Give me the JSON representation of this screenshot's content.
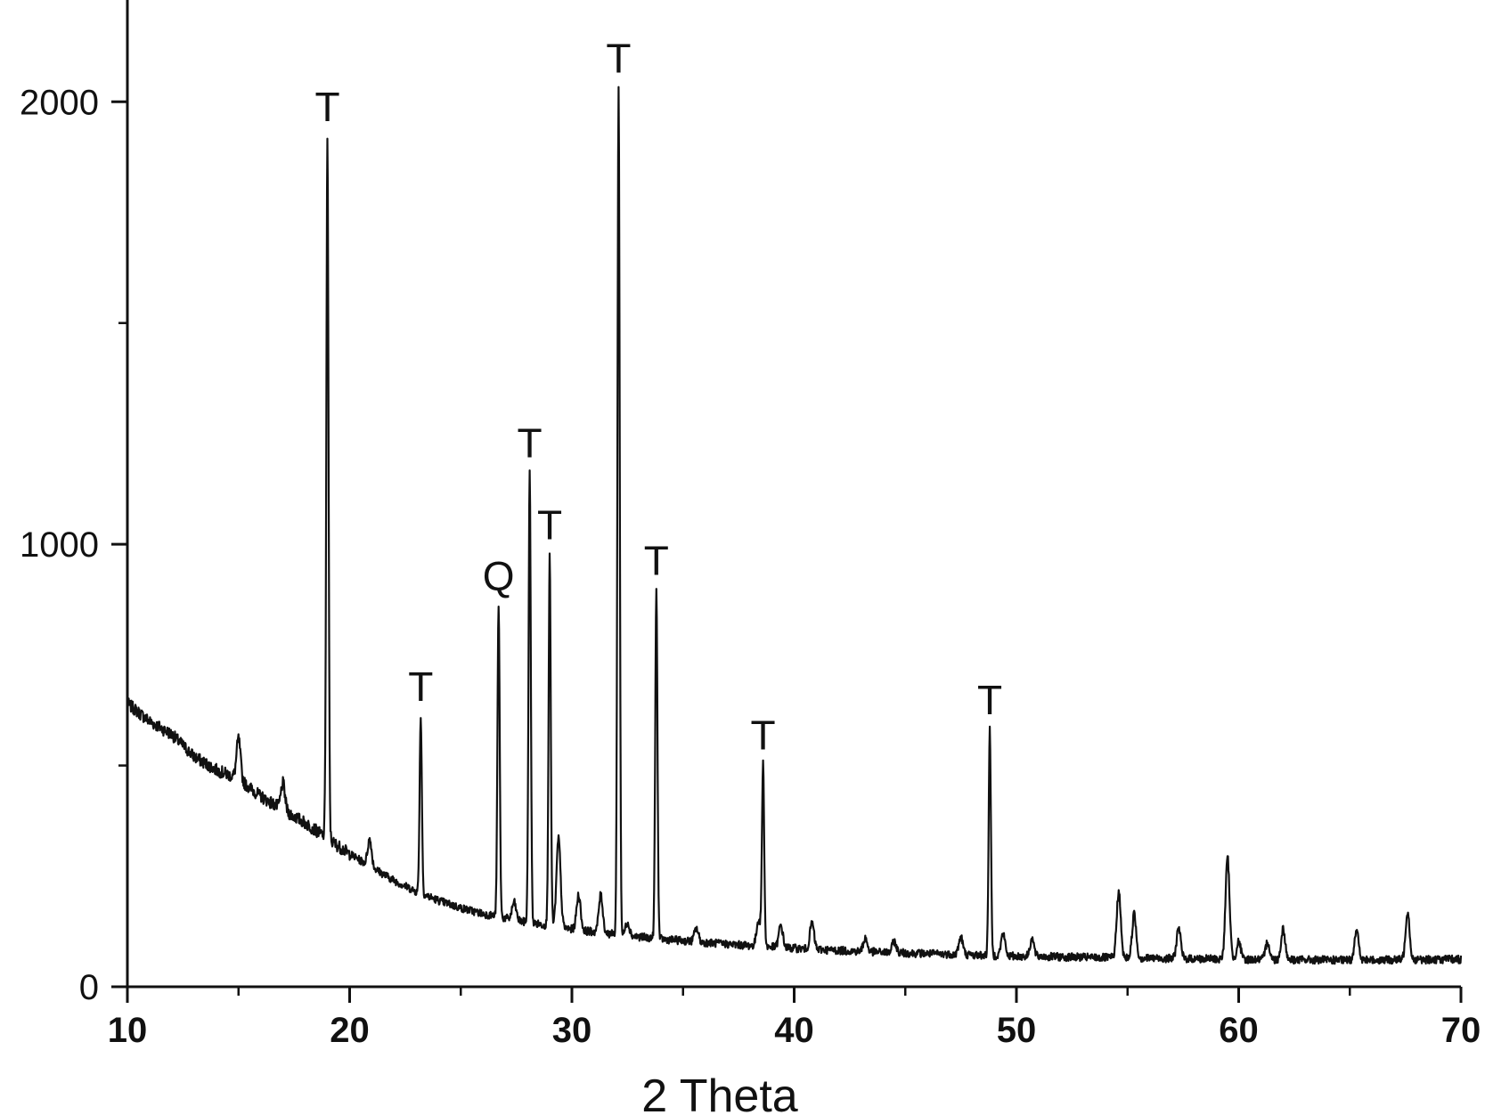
{
  "chart_data": {
    "type": "line",
    "title": "",
    "xlabel": "2 Theta",
    "ylabel": "",
    "xlim": [
      10,
      70
    ],
    "ylim": [
      0,
      2230
    ],
    "x_ticks": [
      10,
      20,
      30,
      40,
      50,
      60,
      70
    ],
    "y_ticks": [
      0,
      1000,
      2000
    ],
    "grid": false,
    "line_color": "#111111",
    "baseline": [
      [
        10,
        640
      ],
      [
        11,
        600
      ],
      [
        12,
        570
      ],
      [
        13,
        520
      ],
      [
        14,
        490
      ],
      [
        15,
        470
      ],
      [
        16,
        430
      ],
      [
        17,
        400
      ],
      [
        18,
        370
      ],
      [
        19,
        335
      ],
      [
        20,
        300
      ],
      [
        21,
        270
      ],
      [
        22,
        240
      ],
      [
        23,
        215
      ],
      [
        24,
        195
      ],
      [
        25,
        178
      ],
      [
        26,
        165
      ],
      [
        27,
        155
      ],
      [
        28,
        145
      ],
      [
        29,
        138
      ],
      [
        30,
        130
      ],
      [
        31,
        124
      ],
      [
        32,
        118
      ],
      [
        33,
        113
      ],
      [
        34,
        108
      ],
      [
        35,
        104
      ],
      [
        36,
        100
      ],
      [
        38,
        93
      ],
      [
        40,
        87
      ],
      [
        42,
        82
      ],
      [
        44,
        78
      ],
      [
        46,
        75
      ],
      [
        48,
        72
      ],
      [
        50,
        69
      ],
      [
        55,
        65
      ],
      [
        60,
        62
      ],
      [
        65,
        60
      ],
      [
        70,
        62
      ]
    ],
    "minor_peaks": [
      [
        15.0,
        90
      ],
      [
        17.0,
        60
      ],
      [
        20.9,
        60
      ],
      [
        27.4,
        40
      ],
      [
        29.4,
        200
      ],
      [
        30.3,
        80
      ],
      [
        31.3,
        85
      ],
      [
        32.5,
        30
      ],
      [
        35.6,
        30
      ],
      [
        38.4,
        60
      ],
      [
        39.4,
        50
      ],
      [
        40.8,
        60
      ],
      [
        43.2,
        30
      ],
      [
        44.5,
        25
      ],
      [
        47.5,
        40
      ],
      [
        49.4,
        50
      ],
      [
        50.7,
        40
      ],
      [
        54.6,
        150
      ],
      [
        55.3,
        100
      ],
      [
        57.3,
        70
      ],
      [
        59.5,
        230
      ],
      [
        60.0,
        40
      ],
      [
        61.3,
        40
      ],
      [
        62.0,
        70
      ],
      [
        65.3,
        70
      ],
      [
        67.6,
        110
      ]
    ],
    "peaks": [
      {
        "x": 19.0,
        "y": 1920,
        "label": "T"
      },
      {
        "x": 23.2,
        "y": 610,
        "label": "T"
      },
      {
        "x": 26.7,
        "y": 860,
        "label": "Q"
      },
      {
        "x": 28.1,
        "y": 1160,
        "label": "T"
      },
      {
        "x": 29.0,
        "y": 975,
        "label": "T"
      },
      {
        "x": 32.1,
        "y": 2030,
        "label": "T"
      },
      {
        "x": 33.8,
        "y": 895,
        "label": "T"
      },
      {
        "x": 38.6,
        "y": 500,
        "label": "T"
      },
      {
        "x": 48.8,
        "y": 580,
        "label": "T"
      }
    ]
  }
}
